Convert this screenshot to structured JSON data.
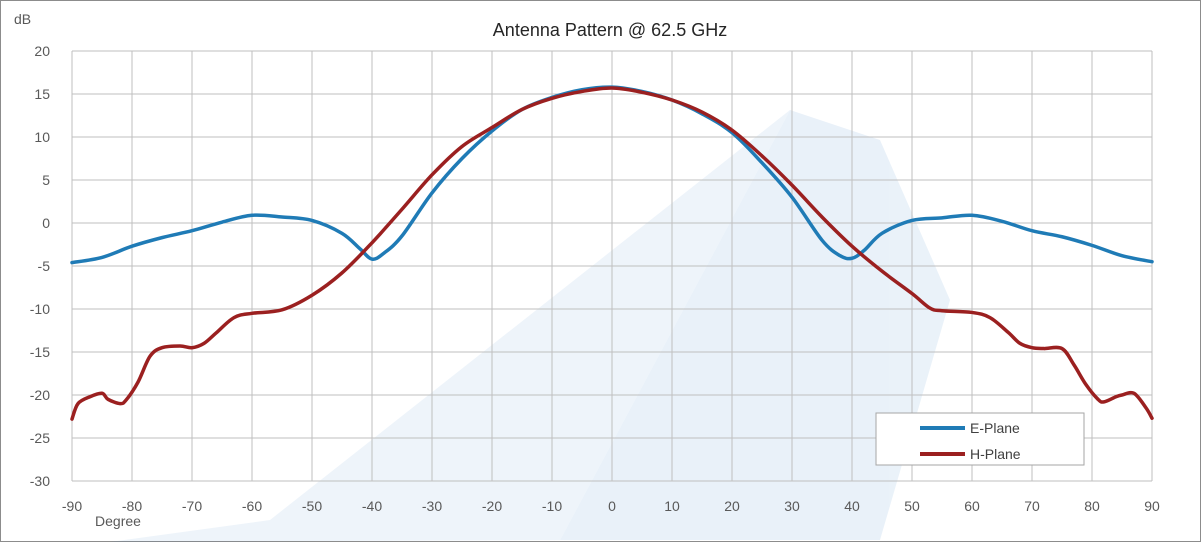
{
  "chart_data": {
    "type": "line",
    "title": "Antenna Pattern @ 62.5 GHz",
    "ylabel": "dB",
    "xlabel": "Degree",
    "xlim": [
      -90,
      90
    ],
    "ylim": [
      -30,
      20
    ],
    "x_ticks": [
      -90,
      -80,
      -70,
      -60,
      -50,
      -40,
      -30,
      -20,
      -10,
      0,
      10,
      20,
      30,
      40,
      50,
      60,
      70,
      80,
      90
    ],
    "y_ticks": [
      -30,
      -25,
      -20,
      -15,
      -10,
      -5,
      0,
      5,
      10,
      15,
      20
    ],
    "grid": true,
    "legend_position": "bottom-right",
    "series": [
      {
        "name": "E-Plane",
        "color": "#1f7bb6",
        "x": [
          -90,
          -85,
          -80,
          -75,
          -70,
          -65,
          -60,
          -55,
          -50,
          -45,
          -42,
          -40,
          -38,
          -35,
          -30,
          -25,
          -20,
          -15,
          -10,
          -5,
          0,
          5,
          10,
          15,
          20,
          25,
          30,
          35,
          38,
          40,
          42,
          45,
          50,
          55,
          60,
          65,
          70,
          75,
          80,
          85,
          90
        ],
        "y": [
          -4.6,
          -4.0,
          -2.7,
          -1.7,
          -0.9,
          0.1,
          0.9,
          0.7,
          0.3,
          -1.2,
          -3.0,
          -4.2,
          -3.5,
          -1.5,
          3.5,
          7.5,
          10.7,
          13.2,
          14.6,
          15.5,
          15.8,
          15.3,
          14.3,
          12.7,
          10.5,
          7.0,
          3.0,
          -2.0,
          -3.8,
          -4.1,
          -3.2,
          -1.2,
          0.3,
          0.6,
          0.9,
          0.2,
          -0.9,
          -1.6,
          -2.6,
          -3.8,
          -4.5
        ]
      },
      {
        "name": "H-Plane",
        "color": "#9b2020",
        "x": [
          -90,
          -89,
          -87,
          -85,
          -84,
          -82,
          -81,
          -79,
          -77,
          -75,
          -72,
          -70,
          -68,
          -66,
          -63,
          -60,
          -55,
          -50,
          -45,
          -40,
          -35,
          -30,
          -25,
          -20,
          -15,
          -10,
          -5,
          0,
          5,
          10,
          15,
          20,
          25,
          30,
          35,
          40,
          45,
          50,
          53,
          55,
          60,
          63,
          66,
          68,
          70,
          72,
          75,
          77,
          79,
          81,
          82,
          84,
          85,
          87,
          89,
          90
        ],
        "y": [
          -22.8,
          -21.0,
          -20.2,
          -19.8,
          -20.5,
          -21.0,
          -20.6,
          -18.5,
          -15.5,
          -14.5,
          -14.3,
          -14.5,
          -14.0,
          -12.8,
          -11.0,
          -10.5,
          -10.1,
          -8.4,
          -5.8,
          -2.3,
          1.6,
          5.6,
          8.9,
          11.1,
          13.2,
          14.5,
          15.3,
          15.7,
          15.2,
          14.3,
          12.9,
          10.8,
          7.8,
          4.4,
          0.7,
          -2.7,
          -5.6,
          -8.2,
          -9.9,
          -10.2,
          -10.4,
          -11.0,
          -12.7,
          -14.0,
          -14.5,
          -14.6,
          -14.6,
          -16.5,
          -18.8,
          -20.5,
          -20.8,
          -20.2,
          -20.0,
          -19.8,
          -21.5,
          -22.7
        ]
      }
    ]
  }
}
